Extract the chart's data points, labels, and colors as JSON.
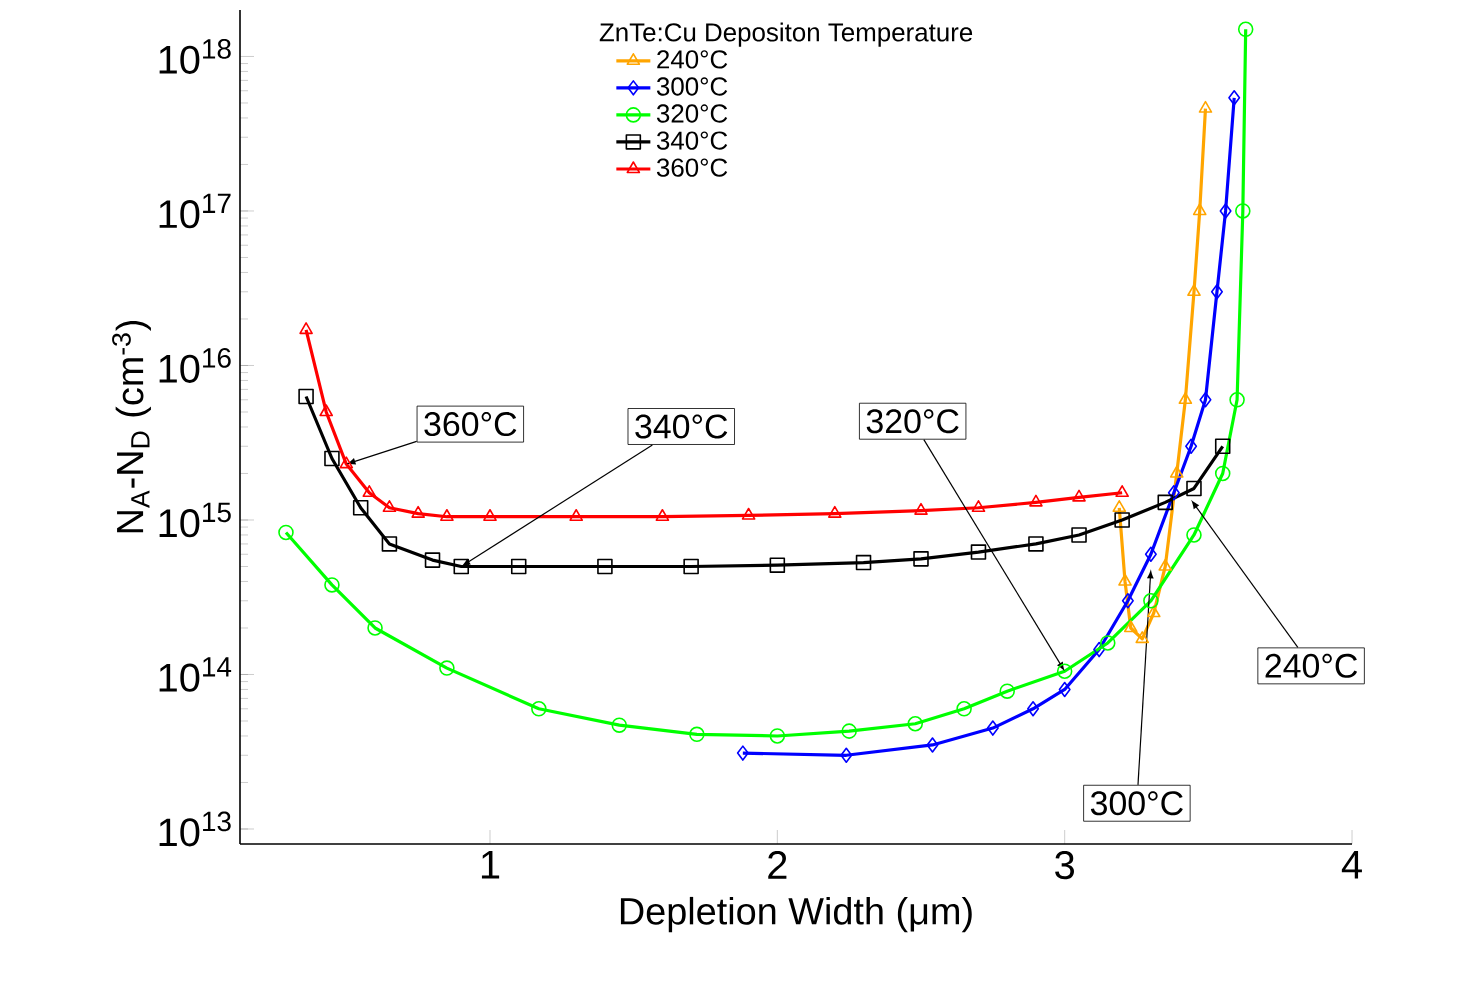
{
  "chart_data": {
    "type": "line",
    "xlabel": "Depletion Width (μm)",
    "ylabel": "N$_{A}$-N$_{D}$ (cm$^{-3}$)",
    "legend_title": "ZnTe:Cu Depositon Temperature",
    "legend": "top",
    "log": "y",
    "grid": false,
    "line_style": "solid",
    "xlim": [
      0.13,
      4
    ],
    "xticks": [
      1,
      2,
      3,
      4
    ],
    "ylim": [
      8000000000000.0,
      2e+18
    ],
    "yticks": [
      {
        "value": 10000000000000.0,
        "label": "10$^{13}$"
      },
      {
        "value": 100000000000000.0,
        "label": "10$^{14}$"
      },
      {
        "value": 1000000000000000.0,
        "label": "10$^{15}$"
      },
      {
        "value": 1e+16,
        "label": "10$^{16}$"
      },
      {
        "value": 1e+17,
        "label": "10$^{17}$"
      },
      {
        "value": 1e+18,
        "label": "10$^{18}$"
      }
    ],
    "series": [
      {
        "name": "240°C",
        "color": "#ffa500",
        "marker": "triangle-down",
        "x": [
          3.19,
          3.21,
          3.23,
          3.27,
          3.31,
          3.35,
          3.39,
          3.42,
          3.45,
          3.47,
          3.49
        ],
        "values": [
          1200000000000000.0,
          400000000000000.0,
          200000000000000.0,
          170000000000000.0,
          250000000000000.0,
          500000000000000.0,
          2000000000000000.0,
          6000000000000000.0,
          3e+16,
          1e+17,
          4.6e+17
        ]
      },
      {
        "name": "300°C",
        "color": "#0000ff",
        "marker": "diamond",
        "x": [
          1.88,
          2.24,
          2.54,
          2.75,
          2.89,
          3.0,
          3.12,
          3.22,
          3.3,
          3.38,
          3.44,
          3.49,
          3.53,
          3.56,
          3.59
        ],
        "values": [
          31000000000000.0,
          30000000000000.0,
          35000000000000.0,
          45000000000000.0,
          60000000000000.0,
          80000000000000.0,
          145000000000000.0,
          300000000000000.0,
          600000000000000.0,
          1500000000000000.0,
          3000000000000000.0,
          6000000000000000.0,
          3e+16,
          1e+17,
          5.4e+17
        ]
      },
      {
        "name": "320°C",
        "color": "#00ff00",
        "marker": "circle",
        "x": [
          0.29,
          0.45,
          0.6,
          0.85,
          1.17,
          1.45,
          1.72,
          2.0,
          2.25,
          2.48,
          2.65,
          2.8,
          3.0,
          3.15,
          3.3,
          3.45,
          3.55,
          3.6,
          3.62,
          3.63
        ],
        "values": [
          830000000000000.0,
          380000000000000.0,
          200000000000000.0,
          110000000000000.0,
          60000000000000.0,
          47000000000000.0,
          41000000000000.0,
          40000000000000.0,
          43000000000000.0,
          48000000000000.0,
          60000000000000.0,
          78000000000000.0,
          105000000000000.0,
          160000000000000.0,
          300000000000000.0,
          800000000000000.0,
          2000000000000000.0,
          6000000000000000.0,
          1e+17,
          1.5e+18
        ]
      },
      {
        "name": "340°C",
        "color": "#000000",
        "marker": "square",
        "x": [
          0.36,
          0.45,
          0.55,
          0.65,
          0.8,
          0.9,
          1.1,
          1.4,
          1.7,
          2.0,
          2.3,
          2.5,
          2.7,
          2.9,
          3.05,
          3.2,
          3.35,
          3.45,
          3.55
        ],
        "values": [
          6300000000000000.0,
          2500000000000000.0,
          1200000000000000.0,
          700000000000000.0,
          550000000000000.0,
          500000000000000.0,
          500000000000000.0,
          500000000000000.0,
          500000000000000.0,
          510000000000000.0,
          530000000000000.0,
          560000000000000.0,
          620000000000000.0,
          700000000000000.0,
          800000000000000.0,
          1000000000000000.0,
          1300000000000000.0,
          1600000000000000.0,
          3000000000000000.0
        ]
      },
      {
        "name": "360°C",
        "color": "#ff0000",
        "marker": "triangle",
        "x": [
          0.36,
          0.43,
          0.5,
          0.58,
          0.65,
          0.75,
          0.85,
          1.0,
          1.3,
          1.6,
          1.9,
          2.2,
          2.5,
          2.7,
          2.9,
          3.05,
          3.2
        ],
        "values": [
          1.7e+16,
          5000000000000000.0,
          2300000000000000.0,
          1500000000000000.0,
          1200000000000000.0,
          1100000000000000.0,
          1050000000000000.0,
          1050000000000000.0,
          1050000000000000.0,
          1050000000000000.0,
          1070000000000000.0,
          1100000000000000.0,
          1150000000000000.0,
          1200000000000000.0,
          1300000000000000.0,
          1400000000000000.0,
          1500000000000000.0
        ]
      }
    ],
    "annotations": [
      {
        "text": "360°C",
        "x": 0.5,
        "y": 2300000000000000.0
      },
      {
        "text": "340°C",
        "x": 0.9,
        "y": 500000000000000.0
      },
      {
        "text": "320°C",
        "x": 3.0,
        "y": 105000000000000.0
      },
      {
        "text": "240°C",
        "x": 3.44,
        "y": 1350000000000000.0
      },
      {
        "text": "300°C",
        "x": 3.3,
        "y": 480000000000000.0
      }
    ]
  }
}
